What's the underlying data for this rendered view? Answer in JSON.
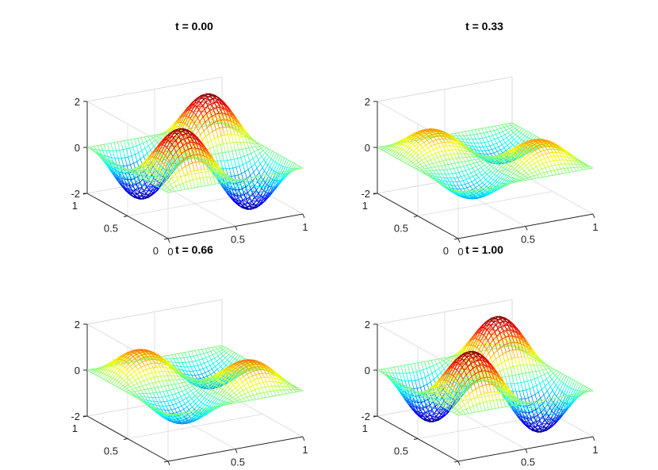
{
  "figure": {
    "background": "#ffffff",
    "colormap": "jet"
  },
  "chart_data": [
    {
      "type": "surface",
      "title": "t = 0.00",
      "t": 0.0,
      "function": "2*sin(2*pi*x)*sin(2*pi*y)*cos(2*pi*t)",
      "xlim": [
        0,
        1
      ],
      "ylim": [
        0,
        1
      ],
      "zlim": [
        -2,
        2
      ],
      "x_ticks": [
        "0",
        "0.5",
        "1"
      ],
      "y_ticks": [
        "0",
        "0.5",
        "1"
      ],
      "z_ticks": [
        "-2",
        "0",
        "2"
      ],
      "grid": true
    },
    {
      "type": "surface",
      "title": "t = 0.33",
      "t": 0.33,
      "function": "2*sin(2*pi*x)*sin(2*pi*y)*cos(2*pi*t)",
      "xlim": [
        0,
        1
      ],
      "ylim": [
        0,
        1
      ],
      "zlim": [
        -2,
        2
      ],
      "x_ticks": [
        "0",
        "0.5",
        "1"
      ],
      "y_ticks": [
        "0",
        "0.5",
        "1"
      ],
      "z_ticks": [
        "-2",
        "0",
        "2"
      ],
      "grid": true
    },
    {
      "type": "surface",
      "title": "t = 0.66",
      "t": 0.66,
      "function": "2*sin(2*pi*x)*sin(2*pi*y)*cos(2*pi*t)",
      "xlim": [
        0,
        1
      ],
      "ylim": [
        0,
        1
      ],
      "zlim": [
        -2,
        2
      ],
      "x_ticks": [
        "0",
        "0.5",
        "1"
      ],
      "y_ticks": [
        "0",
        "0.5",
        "1"
      ],
      "z_ticks": [
        "-2",
        "0",
        "2"
      ],
      "grid": true
    },
    {
      "type": "surface",
      "title": "t = 1.00",
      "t": 1.0,
      "function": "2*sin(2*pi*x)*sin(2*pi*y)*cos(2*pi*t)",
      "xlim": [
        0,
        1
      ],
      "ylim": [
        0,
        1
      ],
      "zlim": [
        -2,
        2
      ],
      "x_ticks": [
        "0",
        "0.5",
        "1"
      ],
      "y_ticks": [
        "0",
        "0.5",
        "1"
      ],
      "z_ticks": [
        "-2",
        "0",
        "2"
      ],
      "grid": true
    }
  ]
}
